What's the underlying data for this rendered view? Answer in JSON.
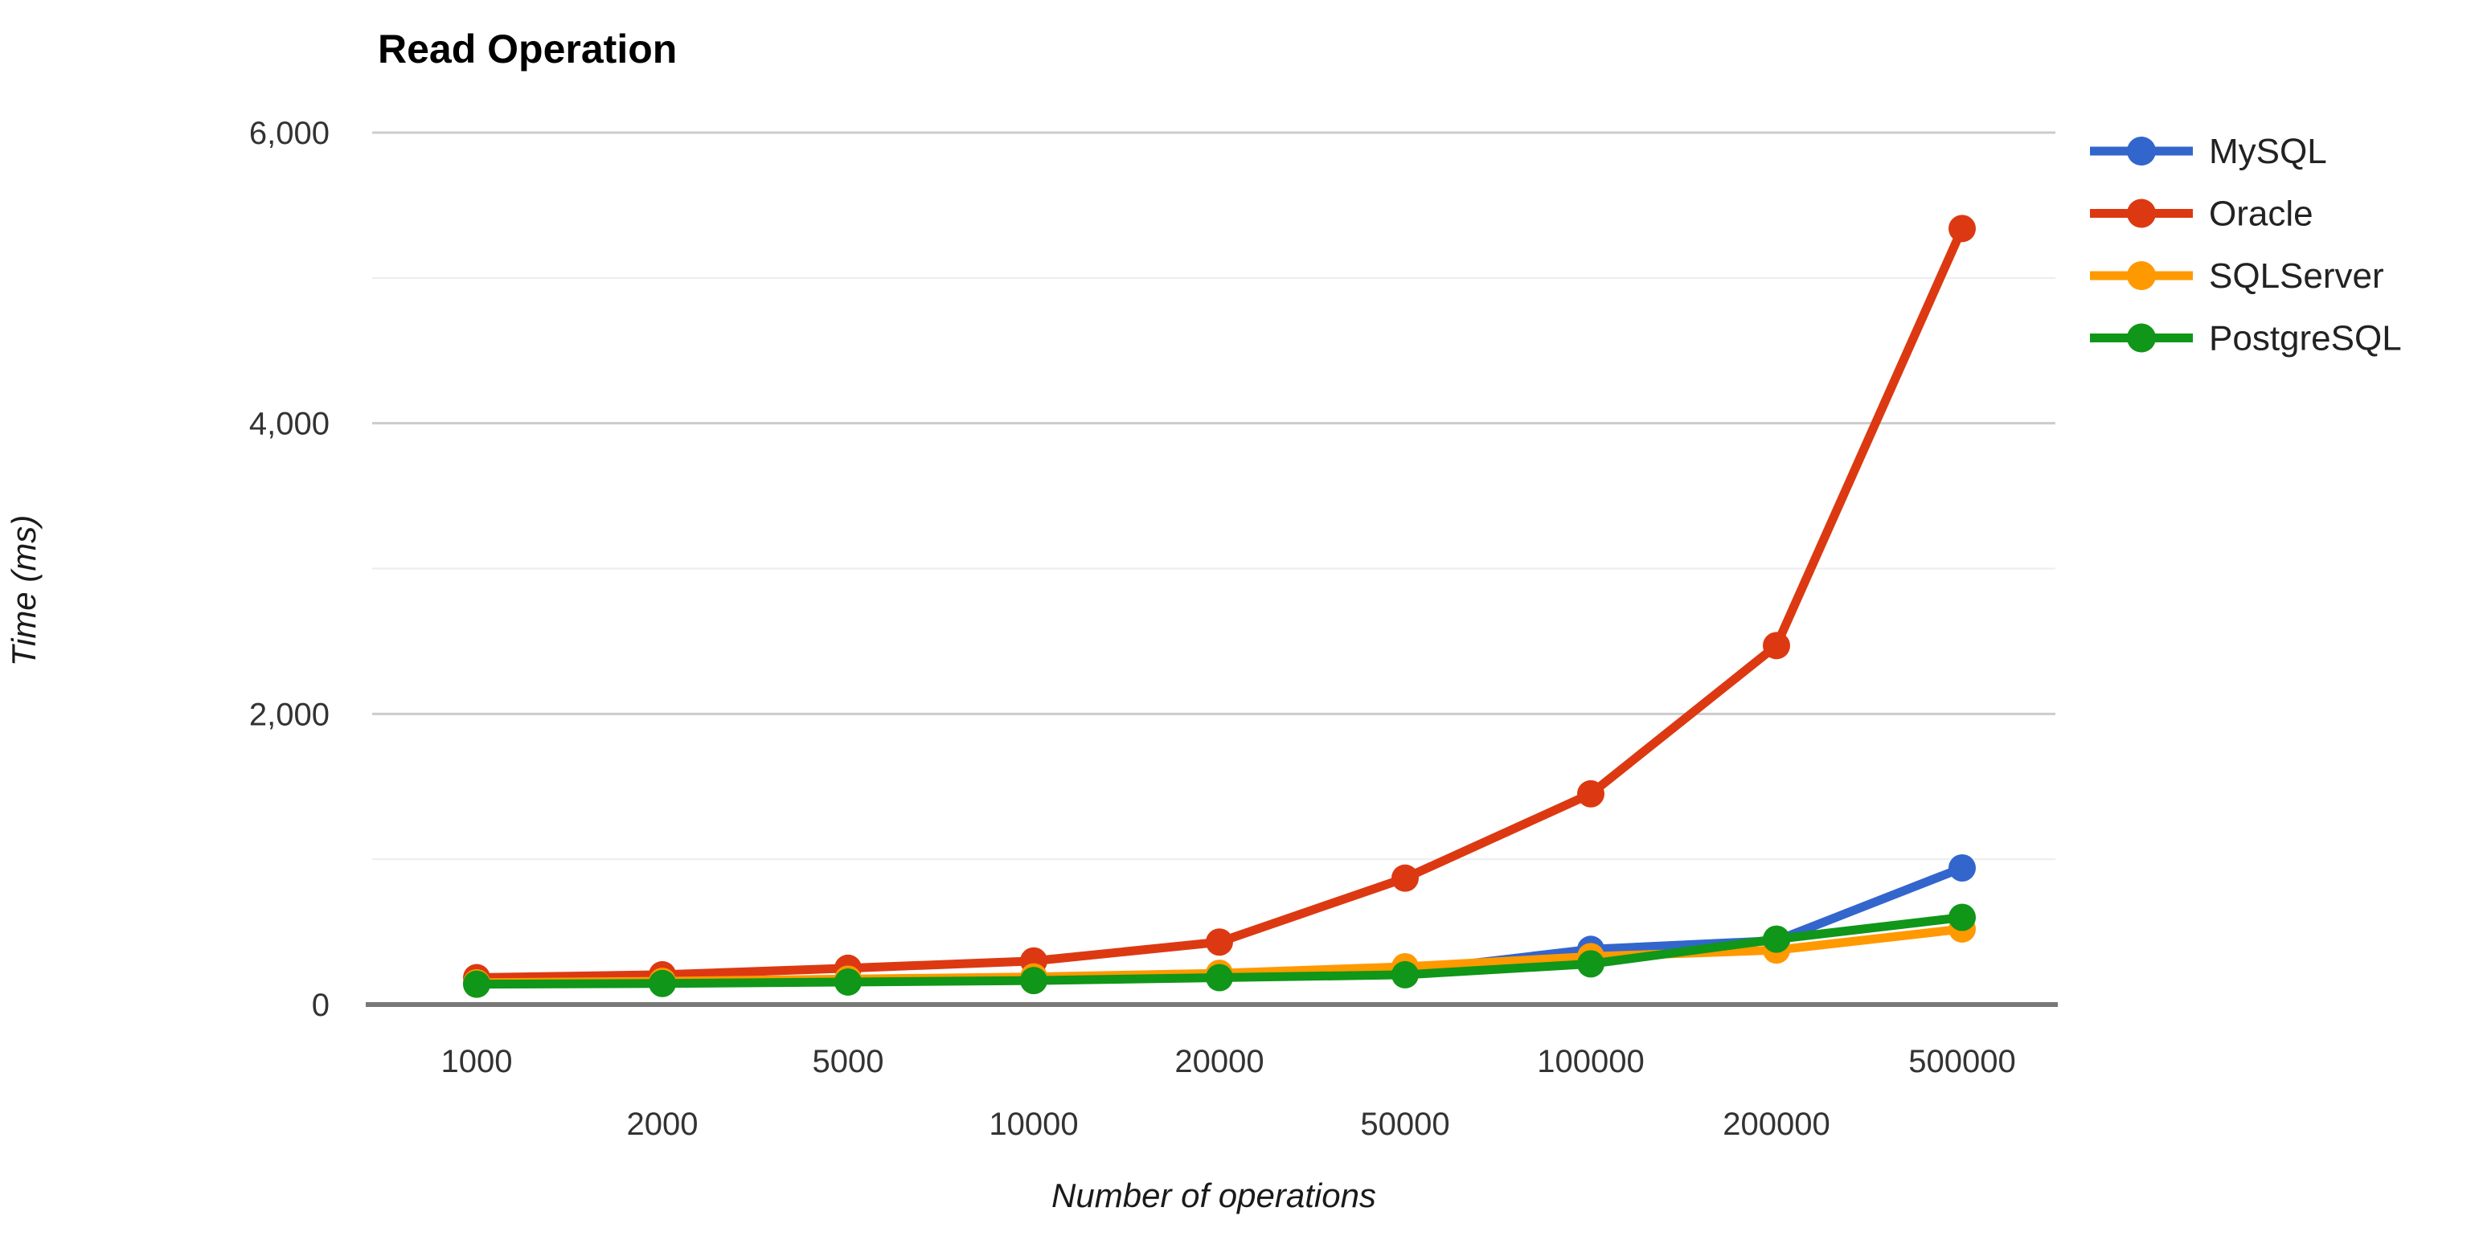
{
  "chart_data": {
    "type": "line",
    "title": "Read Operation",
    "xlabel": "Number of operations",
    "ylabel": "Time (ms)",
    "categories": [
      1000,
      2000,
      5000,
      10000,
      20000,
      50000,
      100000,
      200000,
      500000
    ],
    "category_labels": [
      "1000",
      "2000",
      "5000",
      "10000",
      "20000",
      "50000",
      "100000",
      "200000",
      "500000"
    ],
    "series": [
      {
        "name": "MySQL",
        "color": "#3366CC",
        "values": [
          150,
          155,
          165,
          180,
          195,
          230,
          380,
          440,
          940
        ]
      },
      {
        "name": "Oracle",
        "color": "#DC3912",
        "values": [
          185,
          205,
          250,
          300,
          430,
          870,
          1450,
          2470,
          5340
        ]
      },
      {
        "name": "SQLServer",
        "color": "#FF9900",
        "values": [
          150,
          160,
          175,
          190,
          215,
          260,
          330,
          375,
          520
        ]
      },
      {
        "name": "PostgreSQL",
        "color": "#109618",
        "values": [
          140,
          145,
          155,
          165,
          185,
          205,
          280,
          450,
          600
        ]
      }
    ],
    "ylim": [
      0,
      6000
    ],
    "y_major_ticks": [
      0,
      2000,
      4000,
      6000
    ],
    "y_major_tick_labels": [
      "0",
      "2,000",
      "4,000",
      "6,000"
    ],
    "y_minor_ticks": [
      1000,
      3000,
      5000
    ],
    "grid": true,
    "legend_position": "right",
    "x_labels_staggered": true
  },
  "colors": {
    "background": "#ffffff",
    "major_gridline": "#cccccc",
    "minor_gridline": "#ededed",
    "baseline": "#787878",
    "tick_label": "#333333",
    "title": "#000000",
    "axis_title": "#1a1a1a"
  }
}
